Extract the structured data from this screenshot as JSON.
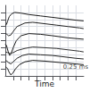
{
  "chart_data": {
    "type": "line",
    "xlabel": "Time",
    "xlim": [
      0,
      10
    ],
    "ylim": [
      0,
      10
    ],
    "xticks": [
      1,
      2,
      3,
      4,
      5,
      6,
      7,
      8,
      9
    ],
    "yticks": [
      1,
      2,
      3,
      4,
      5,
      6,
      7,
      8,
      9
    ],
    "grid": true,
    "tick_labels": false,
    "series": [
      {
        "color": "#1a1a1a",
        "x": [
          0.0,
          0.15,
          0.3,
          0.5,
          0.8,
          1.2,
          2.0,
          3.0,
          4.5,
          6.0,
          7.5,
          9.0,
          10.0
        ],
        "values": [
          7.2,
          7.3,
          7.8,
          8.4,
          8.8,
          9.0,
          8.9,
          8.7,
          8.5,
          8.3,
          8.1,
          7.9,
          7.8
        ]
      },
      {
        "color": "#222222",
        "x": [
          0.0,
          0.2,
          0.4,
          0.7,
          1.0,
          1.5,
          2.5,
          3.5,
          5.0,
          6.5,
          8.0,
          9.5,
          10.0
        ],
        "values": [
          6.0,
          5.9,
          5.7,
          5.8,
          6.3,
          7.0,
          7.5,
          7.6,
          7.4,
          7.2,
          7.0,
          6.8,
          6.7
        ]
      },
      {
        "color": "#1a1a1a",
        "x": [
          0.0,
          0.15,
          0.35,
          0.55,
          0.75,
          1.0,
          1.4,
          2.0,
          3.0,
          4.5,
          6.0,
          8.0,
          10.0
        ],
        "values": [
          4.5,
          4.3,
          3.5,
          2.9,
          3.2,
          4.0,
          5.0,
          5.7,
          6.0,
          5.9,
          5.7,
          5.4,
          5.2
        ]
      },
      {
        "color": "#333333",
        "x": [
          0.0,
          0.3,
          0.6,
          1.0,
          1.5,
          2.5,
          3.5,
          5.0,
          6.5,
          8.0,
          9.5,
          10.0
        ],
        "values": [
          3.4,
          3.3,
          3.2,
          3.3,
          3.6,
          3.9,
          4.1,
          4.0,
          3.9,
          3.7,
          3.5,
          3.4
        ]
      },
      {
        "color": "#222222",
        "x": [
          0.0,
          0.2,
          0.4,
          0.7,
          1.0,
          1.5,
          2.2,
          3.0,
          4.5,
          6.0,
          7.5,
          9.0,
          10.0
        ],
        "values": [
          2.2,
          2.1,
          1.9,
          1.7,
          2.0,
          2.5,
          2.9,
          3.1,
          3.0,
          2.9,
          2.7,
          2.5,
          2.4
        ]
      },
      {
        "color": "#1a1a1a",
        "x": [
          0.0,
          0.15,
          0.3,
          0.5,
          0.7,
          0.95,
          1.3,
          1.8,
          2.5,
          3.5,
          5.0,
          7.0,
          9.0,
          10.0
        ],
        "values": [
          1.3,
          1.2,
          1.0,
          0.5,
          0.15,
          0.4,
          1.0,
          1.6,
          2.0,
          2.2,
          2.1,
          1.9,
          1.7,
          1.6
        ]
      }
    ],
    "annotations": [
      {
        "text": "0.25 ms",
        "x": 6.8,
        "y": 0.25
      }
    ]
  }
}
